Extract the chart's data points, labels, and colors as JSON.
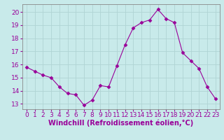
{
  "x": [
    0,
    1,
    2,
    3,
    4,
    5,
    6,
    7,
    8,
    9,
    10,
    11,
    12,
    13,
    14,
    15,
    16,
    17,
    18,
    19,
    20,
    21,
    22,
    23
  ],
  "y": [
    15.8,
    15.5,
    15.2,
    15.0,
    14.3,
    13.8,
    13.7,
    12.9,
    13.3,
    14.4,
    14.3,
    15.9,
    17.5,
    18.8,
    19.2,
    19.4,
    20.2,
    19.5,
    19.2,
    16.9,
    16.3,
    15.7,
    14.3,
    13.4
  ],
  "line_color": "#990099",
  "marker": "D",
  "marker_size": 2.5,
  "bg_color": "#c8eaea",
  "grid_color": "#b0d4d4",
  "xlabel": "Windchill (Refroidissement éolien,°C)",
  "ylabel": "",
  "ylim": [
    12.6,
    20.6
  ],
  "yticks": [
    13,
    14,
    15,
    16,
    17,
    18,
    19,
    20
  ],
  "xticks": [
    0,
    1,
    2,
    3,
    4,
    5,
    6,
    7,
    8,
    9,
    10,
    11,
    12,
    13,
    14,
    15,
    16,
    17,
    18,
    19,
    20,
    21,
    22,
    23
  ],
  "xlabel_fontsize": 7.0,
  "tick_fontsize": 6.5,
  "xlabel_color": "#990099",
  "tick_color": "#990099",
  "spine_color": "#888888"
}
